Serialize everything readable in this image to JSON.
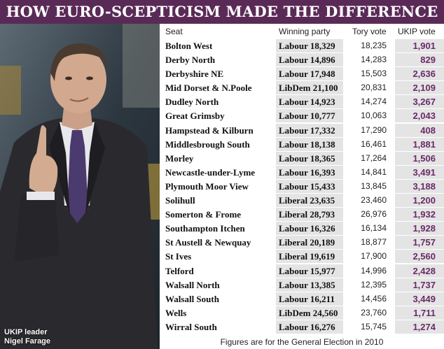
{
  "title": "HOW EURO-SCEPTICISM MADE THE DIFFERENCE",
  "photo": {
    "caption_line1": "UKIP leader",
    "caption_line2": "Nigel Farage"
  },
  "columns": {
    "seat": "Seat",
    "party": "Winning party",
    "tory": "Tory vote",
    "ukip": "UKIP vote"
  },
  "rows": [
    {
      "seat": "Bolton West",
      "party": "Labour 18,329",
      "tory": "18,235",
      "ukip": "1,901"
    },
    {
      "seat": "Derby North",
      "party": "Labour 14,896",
      "tory": "14,283",
      "ukip": "829"
    },
    {
      "seat": "Derbyshire NE",
      "party": "Labour 17,948",
      "tory": "15,503",
      "ukip": "2,636"
    },
    {
      "seat": "Mid Dorset & N.Poole",
      "party": "LibDem 21,100",
      "tory": "20,831",
      "ukip": "2,109"
    },
    {
      "seat": "Dudley North",
      "party": "Labour 14,923",
      "tory": "14,274",
      "ukip": "3,267"
    },
    {
      "seat": "Great Grimsby",
      "party": "Labour 10,777",
      "tory": "10,063",
      "ukip": "2,043"
    },
    {
      "seat": "Hampstead & Kilburn",
      "party": "Labour 17,332",
      "tory": "17,290",
      "ukip": "408"
    },
    {
      "seat": "Middlesbrough South",
      "party": "Labour 18,138",
      "tory": "16,461",
      "ukip": "1,881"
    },
    {
      "seat": "Morley",
      "party": "Labour 18,365",
      "tory": "17,264",
      "ukip": "1,506"
    },
    {
      "seat": "Newcastle-under-Lyme",
      "party": "Labour 16,393",
      "tory": "14,841",
      "ukip": "3,491"
    },
    {
      "seat": "Plymouth Moor View",
      "party": "Labour 15,433",
      "tory": "13,845",
      "ukip": "3,188"
    },
    {
      "seat": "Solihull",
      "party": "Liberal 23,635",
      "tory": "23,460",
      "ukip": "1,200"
    },
    {
      "seat": "Somerton & Frome",
      "party": "Liberal 28,793",
      "tory": "26,976",
      "ukip": "1,932"
    },
    {
      "seat": "Southampton Itchen",
      "party": "Labour 16,326",
      "tory": "16,134",
      "ukip": "1,928"
    },
    {
      "seat": "St Austell & Newquay",
      "party": "Liberal 20,189",
      "tory": "18,877",
      "ukip": "1,757"
    },
    {
      "seat": "St Ives",
      "party": "Liberal 19,619",
      "tory": "17,900",
      "ukip": "2,560"
    },
    {
      "seat": "Telford",
      "party": "Labour 15,977",
      "tory": "14,996",
      "ukip": "2,428"
    },
    {
      "seat": "Walsall North",
      "party": "Labour 13,385",
      "tory": "12,395",
      "ukip": "1,737"
    },
    {
      "seat": "Walsall South",
      "party": "Labour 16,211",
      "tory": "14,456",
      "ukip": "3,449"
    },
    {
      "seat": "Wells",
      "party": "LibDem 24,560",
      "tory": "23,760",
      "ukip": "1,711"
    },
    {
      "seat": "Wirral South",
      "party": "Labour 16,276",
      "tory": "15,745",
      "ukip": "1,274"
    }
  ],
  "footnote": "Figures are for the General Election in 2010"
}
